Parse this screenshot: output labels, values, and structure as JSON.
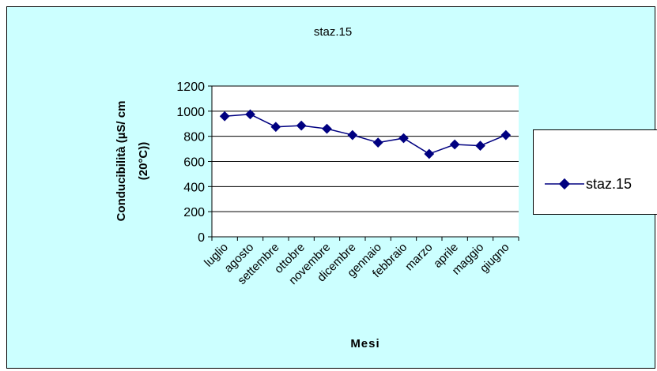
{
  "chart_data": {
    "type": "line",
    "title": "staz.15",
    "xlabel": "Mesi",
    "ylabel_line1": "Conducibilità  (µS/ cm",
    "ylabel_line2": "(20°C))",
    "categories": [
      "luglio",
      "agosto",
      "settembre",
      "ottobre",
      "novembre",
      "dicembre",
      "gennaio",
      "febbraio",
      "marzo",
      "aprile",
      "maggio",
      "giugno"
    ],
    "series": [
      {
        "name": "staz.15",
        "values": [
          960,
          975,
          875,
          885,
          860,
          810,
          750,
          785,
          660,
          735,
          725,
          810
        ]
      }
    ],
    "ylim": [
      0,
      1200
    ],
    "yticks": [
      0,
      200,
      400,
      600,
      800,
      1000,
      1200
    ],
    "grid": true,
    "legend": "right",
    "colors": {
      "series": "#000080",
      "frame": "#ccffff",
      "plot": "#ffffff"
    }
  }
}
